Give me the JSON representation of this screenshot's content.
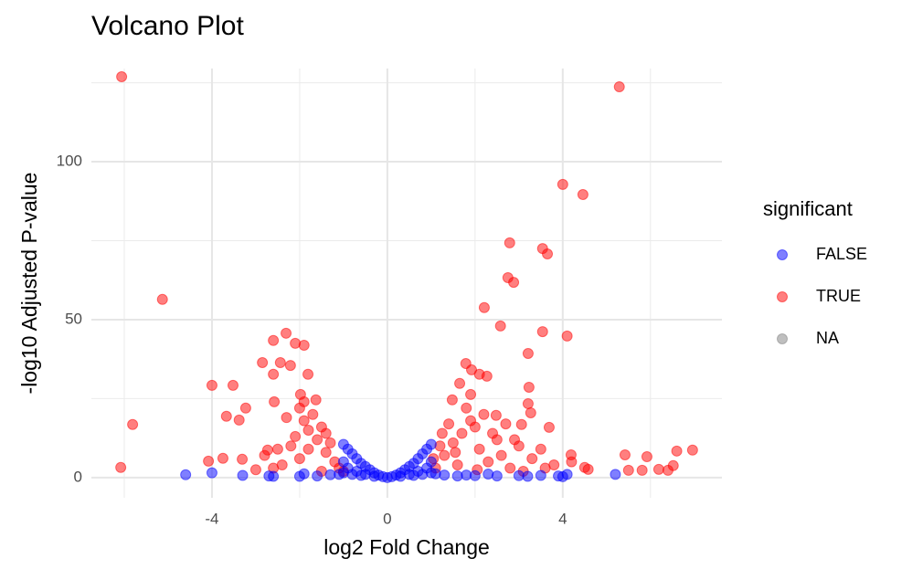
{
  "chart_data": {
    "type": "scatter",
    "title": "Volcano Plot",
    "x_label": "log2 Fold Change",
    "y_label": "-log10 Adjusted P-value",
    "legend_title": "significant",
    "xlim": [
      -6.75,
      7.63
    ],
    "ylim": [
      -6.4,
      129.5
    ],
    "xticks": [
      -4,
      0,
      4
    ],
    "yticks": [
      0,
      50,
      100
    ],
    "xminorticks": [
      -6,
      -2,
      2,
      6
    ],
    "yminorticks": [
      25,
      75,
      125
    ],
    "grid": true,
    "opacity": 0.5,
    "series": [
      {
        "name": "FALSE",
        "color": "#0000ff",
        "x": [
          0,
          0.1,
          -0.1,
          0.2,
          -0.2,
          0.3,
          -0.3,
          0.4,
          -0.4,
          0.5,
          -0.5,
          0.6,
          -0.6,
          0.7,
          -0.7,
          0.8,
          -0.8,
          0.9,
          -0.9,
          1.0,
          -1.0,
          0.5,
          -0.5,
          0.7,
          -0.7,
          0.9,
          -0.9,
          0.8,
          -0.8,
          1.0,
          -1.0,
          1.0,
          -1.0,
          0.3,
          -0.3,
          0.6,
          -0.6,
          1.1,
          -1.1,
          1.3,
          -1.3,
          1.6,
          -1.6,
          2.0,
          -2.0,
          2.5,
          -2.6,
          3.0,
          3.2,
          3.5,
          3.9,
          -3.3,
          -2.7,
          4.0,
          4.1,
          5.2,
          -4.0,
          -4.6,
          2.3,
          1.8,
          -1.9
        ],
        "values": [
          0,
          0.3,
          0.3,
          0.8,
          0.8,
          1.5,
          1.5,
          2.5,
          2.5,
          3.5,
          3.5,
          4.5,
          4.5,
          6,
          6,
          7.5,
          7.5,
          9,
          9,
          10.5,
          10.5,
          1,
          1,
          2,
          2,
          3,
          3,
          1,
          1,
          5,
          5,
          1.5,
          1.5,
          0.4,
          0.4,
          0.7,
          0.7,
          1.2,
          1.0,
          0.8,
          0.9,
          0.5,
          0.5,
          0.6,
          0.4,
          0.5,
          0.4,
          0.6,
          0.4,
          0.7,
          0.5,
          0.7,
          0.5,
          0.3,
          1.0,
          1.0,
          1.5,
          0.9,
          1.1,
          0.8,
          1.2
        ]
      },
      {
        "name": "TRUE",
        "color": "#ff0000",
        "x": [
          -6.06,
          5.29,
          -5.13,
          -5.81,
          -6.08,
          4.0,
          4.46,
          2.79,
          3.54,
          3.65,
          2.75,
          2.88,
          2.21,
          2.58,
          3.54,
          4.1,
          3.21,
          -2.31,
          -2.6,
          -2.1,
          -1.9,
          -2.85,
          -2.44,
          -2.21,
          -2.6,
          -1.81,
          -4.0,
          -3.52,
          -3.23,
          -3.67,
          -3.38,
          -2.58,
          -1.98,
          -1.63,
          1.79,
          1.92,
          2.1,
          2.27,
          1.65,
          1.48,
          1.9,
          3.23,
          3.21,
          3.27,
          3.06,
          3.69,
          2.48,
          -4.08,
          -3.75,
          -3.31,
          -2.73,
          6.52,
          6.6,
          6.96,
          5.92,
          5.42,
          5.5,
          5.81,
          6.19,
          6.4,
          4.19,
          4.5,
          4.58,
          -1.2,
          -1.4,
          -1.6,
          -1.8,
          -1.1,
          -1.5,
          -2.0,
          -2.2,
          -2.4,
          -1.9,
          -1.7,
          -2.1,
          -1.3,
          -2.6,
          -2.8,
          -1.5,
          -2.3,
          -1.8,
          -1.0,
          -3.0,
          -2.5,
          -1.4,
          -2.0,
          -1.9,
          1.1,
          1.3,
          1.5,
          1.7,
          1.9,
          2.1,
          2.3,
          2.5,
          1.2,
          1.6,
          2.0,
          2.2,
          2.6,
          2.8,
          3.0,
          3.3,
          3.5,
          3.8,
          1.4,
          1.8,
          2.4,
          2.7,
          3.1,
          3.6,
          4.2,
          1.05,
          1.55,
          2.9,
          1.25,
          2.05
        ],
        "values": [
          126.9,
          123.7,
          56.4,
          16.8,
          3.2,
          92.8,
          89.6,
          74.3,
          72.5,
          70.8,
          63.3,
          61.8,
          53.8,
          48.0,
          46.2,
          44.8,
          39.3,
          45.7,
          43.4,
          42.5,
          41.9,
          36.4,
          36.4,
          35.5,
          32.7,
          32.7,
          29.2,
          29.2,
          22.0,
          19.4,
          18.2,
          24.0,
          26.3,
          24.6,
          36.1,
          34.1,
          32.7,
          32.1,
          29.8,
          24.6,
          26.3,
          28.6,
          23.4,
          20.5,
          16.8,
          15.9,
          19.7,
          5.2,
          6.1,
          5.8,
          8.7,
          3.8,
          8.4,
          8.7,
          6.6,
          7.2,
          2.3,
          2.3,
          2.6,
          2.3,
          7.2,
          3.2,
          2.6,
          5,
          8,
          12,
          15,
          3,
          2,
          6,
          10,
          4,
          18,
          20,
          13,
          11,
          3,
          7,
          16,
          19,
          9,
          2,
          2.5,
          9,
          14,
          22,
          24,
          3,
          7,
          11,
          14,
          18,
          9,
          5,
          12,
          10,
          4,
          16,
          20,
          7,
          3,
          10,
          6,
          9,
          4,
          17,
          22,
          14,
          17,
          2,
          3,
          5,
          6,
          8,
          12,
          14,
          2.5
        ]
      },
      {
        "name": "NA",
        "color": "#808080",
        "x": [],
        "values": []
      }
    ]
  }
}
